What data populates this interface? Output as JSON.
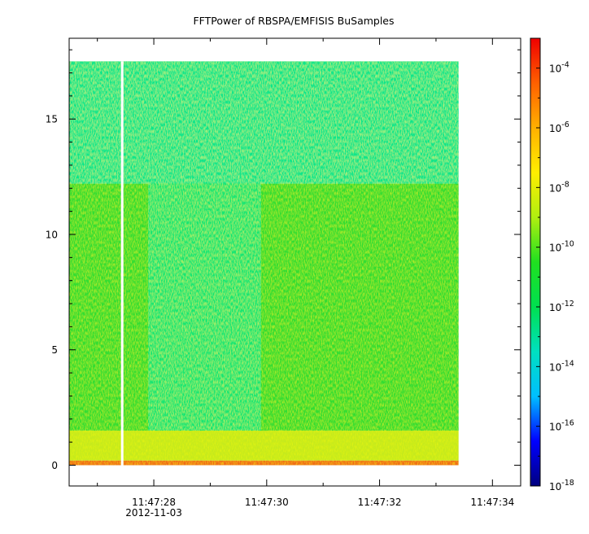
{
  "chart_data": {
    "type": "heatmap",
    "title": "FFTPower of RBSPA/EMFISIS  BuSamples",
    "xlabel": "",
    "ylabel": "",
    "x_ticks": [
      {
        "value": 28,
        "label": "11:47:28",
        "sublabel": "2012-11-03"
      },
      {
        "value": 30,
        "label": "11:47:30"
      },
      {
        "value": 32,
        "label": "11:47:32"
      },
      {
        "value": 34,
        "label": "11:47:34"
      }
    ],
    "x_minor_ticks": [
      27,
      29,
      31,
      33
    ],
    "xlim": [
      26.5,
      34.5
    ],
    "y_ticks": [
      0,
      5,
      10,
      15
    ],
    "ylim": [
      -0.9,
      18.5
    ],
    "data_extent": {
      "x": [
        26.5,
        33.4
      ],
      "y": [
        0,
        17.5
      ]
    },
    "gap_x": 27.44,
    "regions": [
      {
        "name": "background_upper",
        "x": [
          26.5,
          33.4
        ],
        "y": [
          12.2,
          17.5
        ],
        "color": "#10e68a"
      },
      {
        "name": "background_lower",
        "x": [
          26.5,
          33.4
        ],
        "y": [
          1.5,
          12.2
        ],
        "color": "#30dd30"
      },
      {
        "name": "quiet_band",
        "x": [
          27.9,
          29.9
        ],
        "y": [
          1.5,
          12.2
        ],
        "color": "#18e672"
      },
      {
        "name": "low_freq_enhancement",
        "x": [
          26.5,
          33.4
        ],
        "y": [
          0.2,
          1.5
        ],
        "color": "#c6ea1a"
      },
      {
        "name": "base_line",
        "x": [
          26.5,
          33.4
        ],
        "y": [
          0,
          0.2
        ],
        "color": "#ef6e16"
      }
    ],
    "colorbar": {
      "scale": "log",
      "range": [
        1e-18,
        0.001
      ],
      "ticks": [
        {
          "value": 0.0001,
          "base": "10",
          "exp": "-4"
        },
        {
          "value": 1e-06,
          "base": "10",
          "exp": "-6"
        },
        {
          "value": 1e-08,
          "base": "10",
          "exp": "-8"
        },
        {
          "value": 1e-10,
          "base": "10",
          "exp": "-10"
        },
        {
          "value": 1e-12,
          "base": "10",
          "exp": "-12"
        },
        {
          "value": 1e-14,
          "base": "10",
          "exp": "-14"
        },
        {
          "value": 1e-16,
          "base": "10",
          "exp": "-16"
        },
        {
          "value": 1e-18,
          "base": "10",
          "exp": "-18"
        }
      ],
      "colors": [
        "#00007f",
        "#0000ff",
        "#00bfff",
        "#00e0c0",
        "#00e050",
        "#20e020",
        "#b0ef10",
        "#ffee00",
        "#ffb000",
        "#ff6000",
        "#ef0000"
      ]
    }
  }
}
